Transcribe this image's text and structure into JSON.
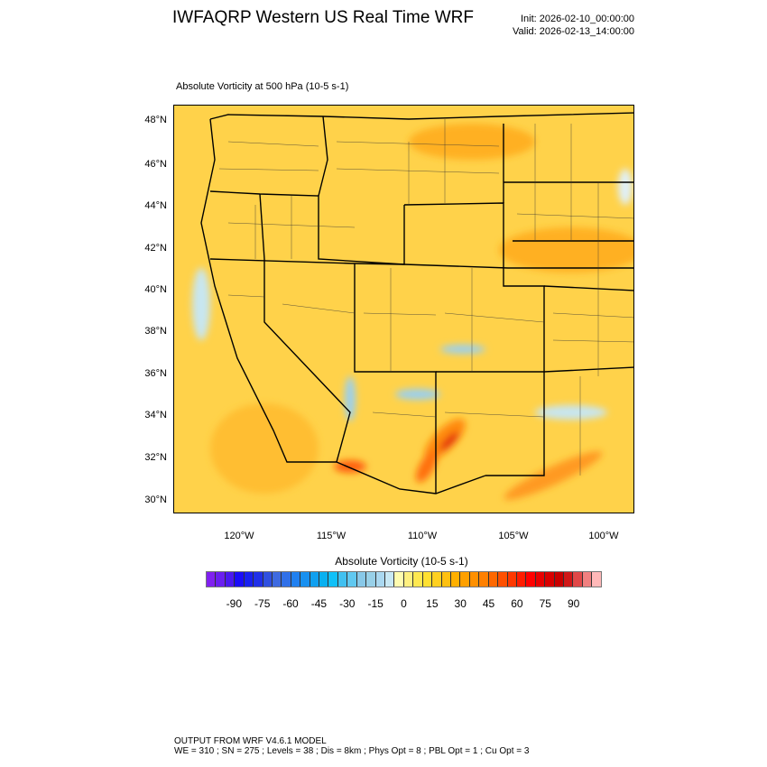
{
  "header": {
    "title": "IWFAQRP Western US Real Time WRF",
    "init": "Init: 2026-02-10_00:00:00",
    "valid": "Valid: 2026-02-13_14:00:00"
  },
  "plot": {
    "subtitle": "Absolute Vorticity at 500 hPa   (10-5 s-1)",
    "lat_labels": [
      "48°N",
      "46°N",
      "44°N",
      "42°N",
      "40°N",
      "38°N",
      "36°N",
      "34°N",
      "32°N",
      "30°N"
    ],
    "lon_labels": [
      "120°W",
      "115°W",
      "110°W",
      "105°W",
      "100°W"
    ],
    "field_colors": {
      "background": "#ffd24a",
      "positive": "#ff9a10",
      "strong": "#e81010",
      "negative": "#9ad0f0"
    }
  },
  "colorbar": {
    "title": "Absolute Vorticity  (10-5 s-1)",
    "labels": [
      "-90",
      "-75",
      "-60",
      "-45",
      "-30",
      "-15",
      "0",
      "15",
      "30",
      "45",
      "60",
      "75",
      "90"
    ],
    "levels_min": -100,
    "levels_max": 100,
    "level_step": 5,
    "colors": [
      "#8020f0",
      "#6a1ef0",
      "#4a18f0",
      "#1a0cf8",
      "#1820f0",
      "#2030e8",
      "#3050e0",
      "#3e6ae0",
      "#3070e8",
      "#2080f0",
      "#1890f0",
      "#10a0f0",
      "#08b0f0",
      "#10c0f8",
      "#40c0f0",
      "#60c8f0",
      "#88c8e8",
      "#98d0e8",
      "#aad8f0",
      "#c8e8f4",
      "#fffcb0",
      "#fff080",
      "#ffe850",
      "#ffe030",
      "#ffd020",
      "#ffc010",
      "#ffb000",
      "#ffa000",
      "#ff9000",
      "#ff8000",
      "#ff6800",
      "#ff5000",
      "#ff3800",
      "#ff1c00",
      "#ff0000",
      "#e80000",
      "#d80000",
      "#c80000",
      "#d01818",
      "#e04848",
      "#f08080",
      "#ffb8b8"
    ]
  },
  "footer": {
    "line1": "OUTPUT FROM WRF V4.6.1 MODEL",
    "line2": "WE = 310 ; SN = 275 ; Levels = 38 ; Dis = 8km ; Phys Opt = 8 ; PBL Opt = 1 ; Cu Opt = 3"
  }
}
